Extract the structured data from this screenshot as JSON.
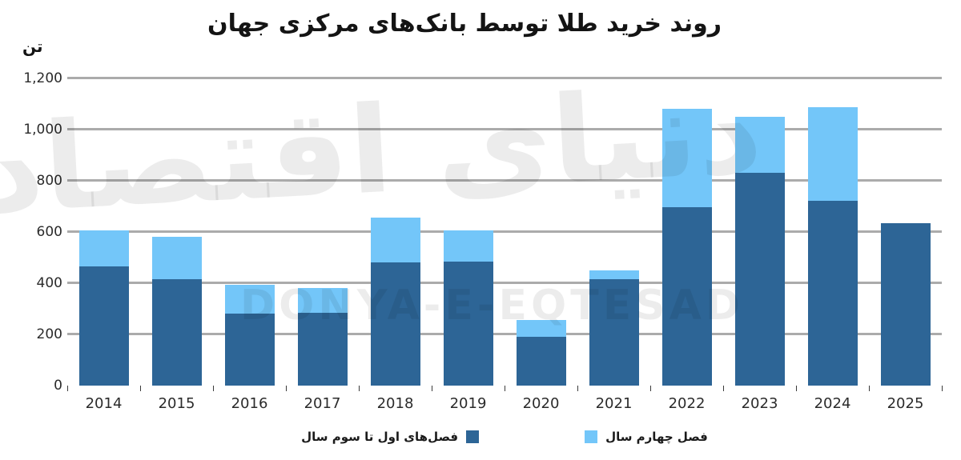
{
  "title": "روند خرید طلا توسط بانک‌های مرکزی جهان",
  "unit_label": "تن",
  "watermark": {
    "persian": "دنیای اقتصاد",
    "latin": "DONYA-E-EQTESAD"
  },
  "colors": {
    "dark_blue": "#2d6596",
    "light_blue": "#73c6f9",
    "gridline": "#ababab",
    "title_text": "#141414",
    "axis_text": "#2b2b2b",
    "watermark": "rgba(0,0,0,0.075)"
  },
  "legend": {
    "q1q3_label": "فصل‌های اول تا سوم سال",
    "q4_label": "فصل چهارم سال"
  },
  "chart_data": {
    "type": "bar",
    "stacked": true,
    "title": "روند خرید طلا توسط بانک‌های مرکزی جهان",
    "ylabel": "تن",
    "xlabel": "",
    "ylim": [
      0,
      1200
    ],
    "ytick_interval": 200,
    "yticks": [
      {
        "value": 0,
        "label": "0"
      },
      {
        "value": 200,
        "label": "200"
      },
      {
        "value": 400,
        "label": "400"
      },
      {
        "value": 600,
        "label": "600"
      },
      {
        "value": 800,
        "label": "800"
      },
      {
        "value": 1000,
        "label": "1,000"
      },
      {
        "value": 1200,
        "label": "1,200"
      }
    ],
    "grid": true,
    "legend_position": "bottom",
    "categories": [
      "2014",
      "2015",
      "2016",
      "2017",
      "2018",
      "2019",
      "2020",
      "2021",
      "2022",
      "2023",
      "2024",
      "2025"
    ],
    "series": [
      {
        "name": "فصل‌های اول تا سوم سال",
        "color_key": "dark_blue",
        "values": [
          465,
          415,
          280,
          285,
          480,
          485,
          190,
          415,
          695,
          830,
          720,
          635
        ]
      },
      {
        "name": "فصل چهارم سال",
        "color_key": "light_blue",
        "values": [
          140,
          165,
          115,
          95,
          175,
          120,
          65,
          35,
          385,
          220,
          365,
          0
        ]
      }
    ],
    "totals": [
      605,
      580,
      395,
      380,
      655,
      605,
      255,
      450,
      1080,
      1050,
      1085,
      635
    ]
  }
}
